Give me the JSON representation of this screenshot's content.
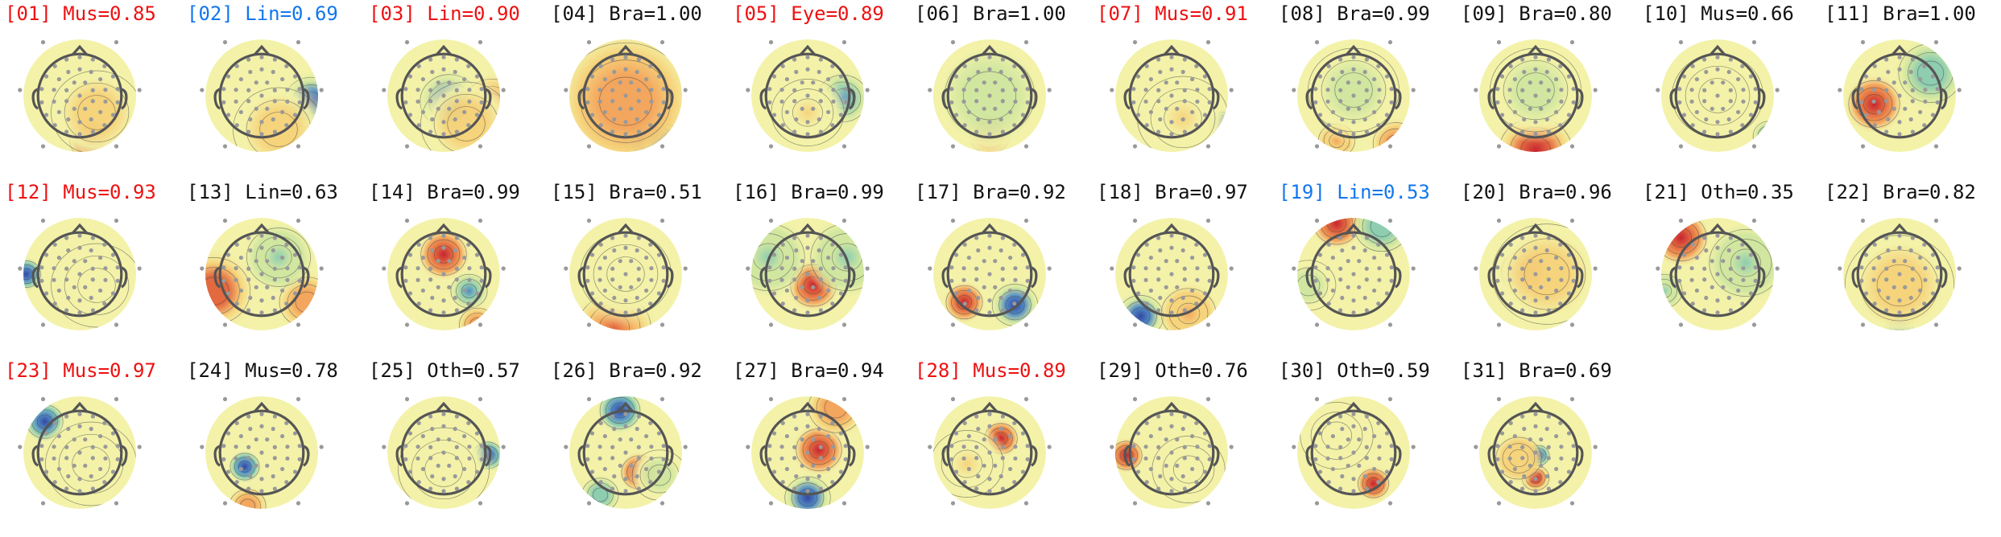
{
  "colors": {
    "red": "#ee1111",
    "blue": "#1177ee",
    "black": "#111111",
    "scalp": "#f3f2a8",
    "pos": "#c8102a",
    "neg": "#2233aa",
    "outline": "#555555",
    "electrode": "#999999"
  },
  "components": [
    {
      "label": "[01] Mus=0.85",
      "class": "Mus",
      "score": 0.85,
      "color": "red"
    },
    {
      "label": "[02] Lin=0.69",
      "class": "Lin",
      "score": 0.69,
      "color": "blue"
    },
    {
      "label": "[03] Lin=0.90",
      "class": "Lin",
      "score": 0.9,
      "color": "red"
    },
    {
      "label": "[04] Bra=1.00",
      "class": "Bra",
      "score": 1.0,
      "color": "black"
    },
    {
      "label": "[05] Eye=0.89",
      "class": "Eye",
      "score": 0.89,
      "color": "red"
    },
    {
      "label": "[06] Bra=1.00",
      "class": "Bra",
      "score": 1.0,
      "color": "black"
    },
    {
      "label": "[07] Mus=0.91",
      "class": "Mus",
      "score": 0.91,
      "color": "red"
    },
    {
      "label": "[08] Bra=0.99",
      "class": "Bra",
      "score": 0.99,
      "color": "black"
    },
    {
      "label": "[09] Bra=0.80",
      "class": "Bra",
      "score": 0.8,
      "color": "black"
    },
    {
      "label": "[10] Mus=0.66",
      "class": "Mus",
      "score": 0.66,
      "color": "black"
    },
    {
      "label": "[11] Bra=1.00",
      "class": "Bra",
      "score": 1.0,
      "color": "black"
    },
    {
      "label": "[12] Mus=0.93",
      "class": "Mus",
      "score": 0.93,
      "color": "red"
    },
    {
      "label": "[13] Lin=0.63",
      "class": "Lin",
      "score": 0.63,
      "color": "black"
    },
    {
      "label": "[14] Bra=0.99",
      "class": "Bra",
      "score": 0.99,
      "color": "black"
    },
    {
      "label": "[15] Bra=0.51",
      "class": "Bra",
      "score": 0.51,
      "color": "black"
    },
    {
      "label": "[16] Bra=0.99",
      "class": "Bra",
      "score": 0.99,
      "color": "black"
    },
    {
      "label": "[17] Bra=0.92",
      "class": "Bra",
      "score": 0.92,
      "color": "black"
    },
    {
      "label": "[18] Bra=0.97",
      "class": "Bra",
      "score": 0.97,
      "color": "black"
    },
    {
      "label": "[19] Lin=0.53",
      "class": "Lin",
      "score": 0.53,
      "color": "blue"
    },
    {
      "label": "[20] Bra=0.96",
      "class": "Bra",
      "score": 0.96,
      "color": "black"
    },
    {
      "label": "[21] Oth=0.35",
      "class": "Oth",
      "score": 0.35,
      "color": "black"
    },
    {
      "label": "[22] Bra=0.82",
      "class": "Bra",
      "score": 0.82,
      "color": "black"
    },
    {
      "label": "[23] Mus=0.97",
      "class": "Mus",
      "score": 0.97,
      "color": "red"
    },
    {
      "label": "[24] Mus=0.78",
      "class": "Mus",
      "score": 0.78,
      "color": "black"
    },
    {
      "label": "[25] Oth=0.57",
      "class": "Oth",
      "score": 0.57,
      "color": "black"
    },
    {
      "label": "[26] Bra=0.92",
      "class": "Bra",
      "score": 0.92,
      "color": "black"
    },
    {
      "label": "[27] Bra=0.94",
      "class": "Bra",
      "score": 0.94,
      "color": "black"
    },
    {
      "label": "[28] Mus=0.89",
      "class": "Mus",
      "score": 0.89,
      "color": "red"
    },
    {
      "label": "[29] Oth=0.76",
      "class": "Oth",
      "score": 0.76,
      "color": "black"
    },
    {
      "label": "[30] Oth=0.59",
      "class": "Oth",
      "score": 0.59,
      "color": "black"
    },
    {
      "label": "[31] Bra=0.69",
      "class": "Bra",
      "score": 0.69,
      "color": "black"
    }
  ]
}
